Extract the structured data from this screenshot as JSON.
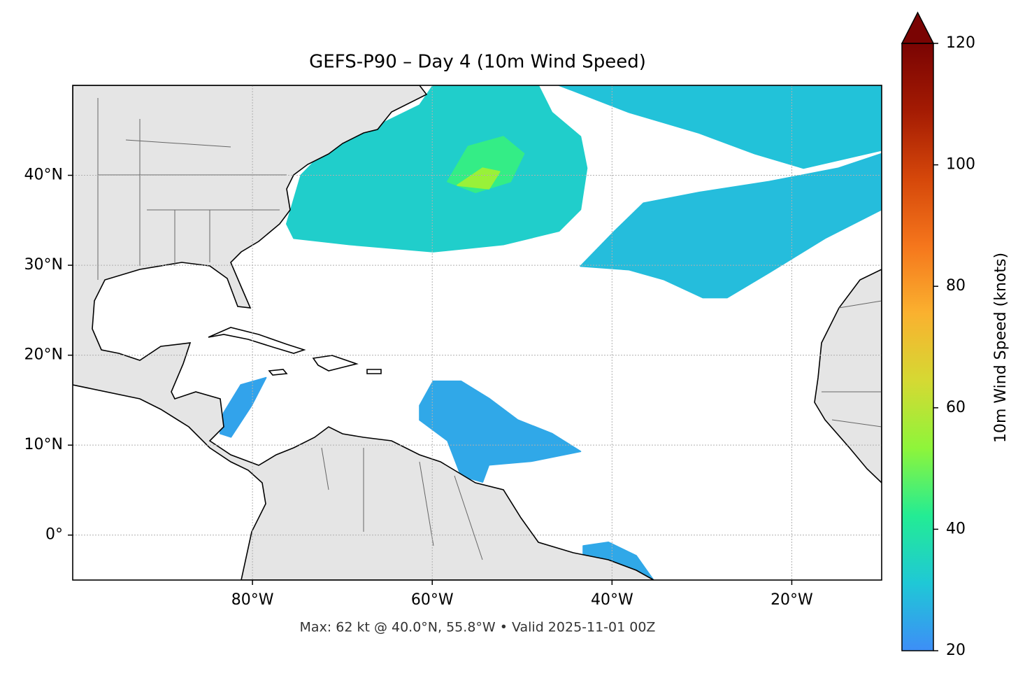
{
  "chart_data": {
    "type": "map",
    "title": "GEFS-P90 – Day 4 (10m Wind Speed)",
    "footer": "Max: 62 kt @ 40.0°N, 55.8°W • Valid 2025-11-01 00Z",
    "xlim": [
      -100,
      -10
    ],
    "ylim": [
      -5,
      50
    ],
    "xticks": [
      {
        "value": -80,
        "label": "80°W"
      },
      {
        "value": -60,
        "label": "60°W"
      },
      {
        "value": -40,
        "label": "40°W"
      },
      {
        "value": -20,
        "label": "20°W"
      }
    ],
    "yticks": [
      {
        "value": 0,
        "label": "0°"
      },
      {
        "value": 10,
        "label": "10°N"
      },
      {
        "value": 20,
        "label": "20°N"
      },
      {
        "value": 30,
        "label": "30°N"
      },
      {
        "value": 40,
        "label": "40°N"
      }
    ],
    "grid": true,
    "colorbar": {
      "label": "10m Wind Speed (knots)",
      "lim": [
        20,
        120
      ],
      "ticks": [
        20,
        40,
        60,
        80,
        100,
        120
      ],
      "extend": "max",
      "colors": [
        "#3d8ef7",
        "#1fc8d6",
        "#23ec94",
        "#8ef53a",
        "#d5d933",
        "#fab12f",
        "#f5761c",
        "#d5470a",
        "#a41b03",
        "#7a0403"
      ]
    },
    "wind_areas": [
      {
        "speed": 33,
        "outline": [
          [
            -76.2,
            34.6
          ],
          [
            -74.6,
            40.0
          ],
          [
            -70.8,
            43.9
          ],
          [
            -66.1,
            45.5
          ],
          [
            -61.4,
            47.8
          ],
          [
            -59.9,
            50
          ],
          [
            -48.2,
            50
          ],
          [
            -46.7,
            47.0
          ],
          [
            -43.5,
            44.3
          ],
          [
            -42.8,
            40.8
          ],
          [
            -43.5,
            36.2
          ],
          [
            -45.9,
            33.8
          ],
          [
            -52.1,
            32.3
          ],
          [
            -59.9,
            31.5
          ],
          [
            -69.2,
            32.3
          ],
          [
            -75.4,
            33.0
          ]
        ]
      },
      {
        "speed": 44,
        "outline": [
          [
            -58.3,
            39.3
          ],
          [
            -56.0,
            43.2
          ],
          [
            -52.1,
            44.3
          ],
          [
            -49.8,
            42.4
          ],
          [
            -51.3,
            39.3
          ],
          [
            -55.2,
            38.1
          ]
        ]
      },
      {
        "speed": 55,
        "outline": [
          [
            -57.2,
            38.9
          ],
          [
            -54.4,
            40.8
          ],
          [
            -52.5,
            40.4
          ],
          [
            -53.7,
            38.5
          ]
        ]
      },
      {
        "speed": 30,
        "outline": [
          [
            -45.9,
            50
          ],
          [
            -10,
            50
          ],
          [
            -10,
            42.8
          ],
          [
            -18.7,
            40.8
          ],
          [
            -24.1,
            42.4
          ],
          [
            -30.3,
            44.7
          ],
          [
            -38.1,
            47.0
          ],
          [
            -44.3,
            49.4
          ]
        ]
      },
      {
        "speed": 29,
        "outline": [
          [
            -43.5,
            29.9
          ],
          [
            -39.7,
            33.8
          ],
          [
            -36.5,
            36.9
          ],
          [
            -30.3,
            38.1
          ],
          [
            -22.5,
            39.3
          ],
          [
            -14.8,
            40.8
          ],
          [
            -10,
            42.4
          ],
          [
            -10,
            36.2
          ],
          [
            -16.3,
            33.0
          ],
          [
            -22.5,
            29.2
          ],
          [
            -27.2,
            26.4
          ],
          [
            -29.9,
            26.4
          ],
          [
            -34.2,
            28.4
          ],
          [
            -38.1,
            29.5
          ]
        ]
      },
      {
        "speed": 25,
        "outline": [
          [
            -61.4,
            14.4
          ],
          [
            -59.9,
            17.1
          ],
          [
            -56.8,
            17.1
          ],
          [
            -53.7,
            15.2
          ],
          [
            -50.5,
            12.8
          ],
          [
            -46.7,
            11.3
          ],
          [
            -43.5,
            9.3
          ],
          [
            -49.0,
            8.2
          ],
          [
            -53.7,
            7.8
          ],
          [
            -54.4,
            5.9
          ],
          [
            -56.8,
            6.6
          ],
          [
            -58.3,
            10.5
          ],
          [
            -61.4,
            12.8
          ]
        ]
      },
      {
        "speed": 24,
        "outline": [
          [
            -83.2,
            13.6
          ],
          [
            -81.3,
            16.7
          ],
          [
            -78.5,
            17.5
          ],
          [
            -80.1,
            14.4
          ],
          [
            -82.4,
            10.9
          ],
          [
            -83.6,
            11.3
          ]
        ]
      },
      {
        "speed": 25,
        "outline": [
          [
            -43.2,
            -1.2
          ],
          [
            -40.4,
            -0.8
          ],
          [
            -37.3,
            -2.3
          ],
          [
            -35.4,
            -5.0
          ],
          [
            -37.7,
            -5.0
          ],
          [
            -41.2,
            -2.7
          ],
          [
            -43.2,
            -2.3
          ]
        ]
      }
    ]
  }
}
